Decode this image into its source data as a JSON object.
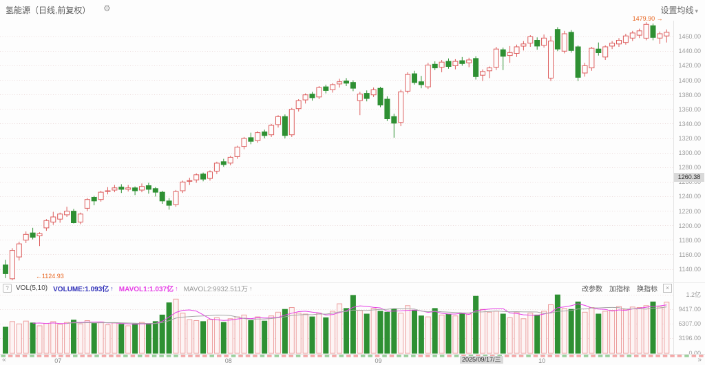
{
  "header": {
    "title": "氢能源（日线,前复权）",
    "gear_icon": "⚙",
    "ma_settings": "设置均线",
    "dropdown_arrow": "▾"
  },
  "indicator_bar": {
    "help_icon": "?",
    "name": "VOL(5,10)",
    "volume_label": "VOLUME:1.093亿",
    "volume_arrow": "↑",
    "mavol1_label": "MAVOL1:1.037亿",
    "mavol1_arrow": "↑",
    "mavol2_label": "MAVOL2:9932.511万",
    "mavol2_arrow": "↑",
    "links": [
      "改参数",
      "加指标",
      "换指标"
    ],
    "close_icon": "×"
  },
  "colors": {
    "up": "#dd5c5c",
    "up_fill": "#fefcfc",
    "down": "#2e9033",
    "vol_up_stroke": "#ec9c9c",
    "vol_up_fill": "#fdf4f4",
    "mavol1": "#e53ce5",
    "mavol2": "#a6a6a6",
    "annotation": "#e8641e",
    "volume_text": "#3030b8",
    "mavol2_text": "#999999",
    "mini_up": "#f3a8a8",
    "mini_down": "#9ccf9c",
    "badge_bg": "#d9d9d9"
  },
  "chart_data": {
    "type": "candlestick",
    "title": "氢能源（日线,前复权）",
    "grid": "dotted",
    "price_axis": {
      "range": [
        1122,
        1482
      ],
      "ticks": [
        1460,
        1440,
        1420,
        1400,
        1380,
        1360,
        1340,
        1320,
        1300,
        1280,
        1260,
        1240,
        1220,
        1200,
        1180,
        1160,
        1140
      ],
      "crosshair_label": "1260.38",
      "crosshair_value": 1260.38
    },
    "volume_axis": {
      "range": [
        0,
        12528
      ],
      "ticks": [
        {
          "label": "1.2亿",
          "value": 12528
        },
        {
          "label": "9417.00",
          "value": 9417
        },
        {
          "label": "6307.00",
          "value": 6307
        },
        {
          "label": "3196.00",
          "value": 3196
        },
        {
          "label": "0.00",
          "value": 0
        }
      ]
    },
    "x_axis": {
      "left_arrow": "«",
      "right_arrow": "»",
      "month_labels": [
        {
          "label": "07",
          "index": 8
        },
        {
          "label": "08",
          "index": 33
        },
        {
          "label": "09",
          "index": 55
        },
        {
          "label": "10",
          "index": 79
        }
      ],
      "crosshair": {
        "label": "2025/09/17/三",
        "index": 70
      }
    },
    "annotations": {
      "high": {
        "text": "1479.90 →",
        "value": 1479.9,
        "index": 94
      },
      "low": {
        "text": "←1124.93",
        "value": 1124.93,
        "index": 1
      }
    },
    "indicator": {
      "name": "VOL(5,10)",
      "volume": "1.093亿",
      "mavol1": "1.037亿",
      "mavol2": "9932.511万"
    },
    "candles": [
      [
        1146,
        1153,
        1128,
        1134,
        5600
      ],
      [
        1127,
        1169,
        1124.93,
        1166,
        6800
      ],
      [
        1157,
        1178,
        1152,
        1175,
        6300
      ],
      [
        1180,
        1192,
        1176,
        1188,
        6900
      ],
      [
        1190,
        1197,
        1181,
        1184,
        6500
      ],
      [
        1186,
        1191,
        1172,
        1189,
        5900
      ],
      [
        1197,
        1209,
        1193,
        1207,
        6400
      ],
      [
        1205,
        1219,
        1201,
        1212,
        6800
      ],
      [
        1209,
        1218,
        1204,
        1216,
        6200
      ],
      [
        1215,
        1226,
        1212,
        1220,
        6600
      ],
      [
        1220,
        1223,
        1203,
        1204,
        7100
      ],
      [
        1205,
        1218,
        1202,
        1216,
        6300
      ],
      [
        1224,
        1238,
        1220,
        1236,
        7000
      ],
      [
        1239,
        1241,
        1228,
        1234,
        6400
      ],
      [
        1236,
        1248,
        1233,
        1246,
        6700
      ],
      [
        1247,
        1253,
        1243,
        1248,
        6100
      ],
      [
        1249,
        1256,
        1246,
        1252,
        6500
      ],
      [
        1253,
        1257,
        1245,
        1250,
        6200
      ],
      [
        1250,
        1256,
        1247,
        1252,
        5900
      ],
      [
        1252,
        1254,
        1242,
        1248,
        6300
      ],
      [
        1249,
        1258,
        1246,
        1254,
        6600
      ],
      [
        1255,
        1259,
        1244,
        1250,
        6400
      ],
      [
        1251,
        1253,
        1240,
        1246,
        6800
      ],
      [
        1246,
        1248,
        1230,
        1234,
        8200
      ],
      [
        1234,
        1238,
        1222,
        1228,
        10800
      ],
      [
        1229,
        1249,
        1226,
        1247,
        11600
      ],
      [
        1248,
        1262,
        1245,
        1260,
        8600
      ],
      [
        1261,
        1266,
        1256,
        1262,
        7200
      ],
      [
        1263,
        1272,
        1259,
        1270,
        7000
      ],
      [
        1271,
        1273,
        1261,
        1264,
        6800
      ],
      [
        1265,
        1276,
        1262,
        1274,
        7200
      ],
      [
        1275,
        1288,
        1271,
        1286,
        7600
      ],
      [
        1288,
        1292,
        1281,
        1284,
        6600
      ],
      [
        1286,
        1296,
        1283,
        1294,
        7400
      ],
      [
        1295,
        1310,
        1292,
        1308,
        7800
      ],
      [
        1309,
        1322,
        1305,
        1320,
        8200
      ],
      [
        1321,
        1328,
        1312,
        1316,
        7000
      ],
      [
        1317,
        1330,
        1314,
        1328,
        7800
      ],
      [
        1329,
        1332,
        1320,
        1324,
        6900
      ],
      [
        1325,
        1340,
        1322,
        1338,
        8000
      ],
      [
        1339,
        1352,
        1335,
        1350,
        8800
      ],
      [
        1350,
        1353,
        1320,
        1324,
        9400
      ],
      [
        1325,
        1362,
        1322,
        1360,
        9800
      ],
      [
        1361,
        1374,
        1357,
        1372,
        8600
      ],
      [
        1373,
        1382,
        1368,
        1380,
        8400
      ],
      [
        1381,
        1384,
        1372,
        1376,
        7800
      ],
      [
        1377,
        1392,
        1374,
        1390,
        8600
      ],
      [
        1391,
        1394,
        1382,
        1386,
        7600
      ],
      [
        1387,
        1396,
        1383,
        1394,
        9000
      ],
      [
        1395,
        1402,
        1390,
        1398,
        10600
      ],
      [
        1399,
        1403,
        1392,
        1396,
        9600
      ],
      [
        1397,
        1400,
        1385,
        1389,
        12400
      ],
      [
        1372,
        1384,
        1352,
        1381,
        9200
      ],
      [
        1382,
        1386,
        1371,
        1375,
        8400
      ],
      [
        1380,
        1390,
        1377,
        1387,
        9600
      ],
      [
        1389,
        1391,
        1363,
        1366,
        9000
      ],
      [
        1374,
        1378,
        1344,
        1347,
        8800
      ],
      [
        1350,
        1354,
        1321,
        1341,
        9400
      ],
      [
        1342,
        1387,
        1337,
        1384,
        8600
      ],
      [
        1385,
        1411,
        1382,
        1408,
        10200
      ],
      [
        1409,
        1413,
        1394,
        1397,
        9200
      ],
      [
        1398,
        1406,
        1389,
        1394,
        8000
      ],
      [
        1391,
        1424,
        1388,
        1421,
        7800
      ],
      [
        1422,
        1426,
        1414,
        1417,
        9600
      ],
      [
        1418,
        1428,
        1411,
        1425,
        8200
      ],
      [
        1426,
        1430,
        1416,
        1419,
        8400
      ],
      [
        1420,
        1429,
        1415,
        1426,
        8000
      ],
      [
        1427,
        1432,
        1420,
        1423,
        8600
      ],
      [
        1424,
        1431,
        1418,
        1428,
        8400
      ],
      [
        1430,
        1433,
        1401,
        1405,
        12200
      ],
      [
        1407,
        1415,
        1399,
        1412,
        9400
      ],
      [
        1413,
        1419,
        1403,
        1417,
        8800
      ],
      [
        1418,
        1446,
        1414,
        1443,
        9000
      ],
      [
        1442,
        1445,
        1414,
        1433,
        8400
      ],
      [
        1434,
        1447,
        1424,
        1438,
        7600
      ],
      [
        1437,
        1449,
        1432,
        1446,
        8800
      ],
      [
        1447,
        1454,
        1441,
        1450,
        7400
      ],
      [
        1451,
        1462,
        1446,
        1460,
        8600
      ],
      [
        1455,
        1459,
        1442,
        1447,
        8200
      ],
      [
        1448,
        1463,
        1445,
        1458,
        9000
      ],
      [
        1403,
        1461,
        1399,
        1454,
        10400
      ],
      [
        1470,
        1473,
        1440,
        1443,
        12500
      ],
      [
        1440,
        1468,
        1437,
        1464,
        9600
      ],
      [
        1466,
        1469,
        1438,
        1441,
        9400
      ],
      [
        1446,
        1448,
        1399,
        1404,
        11000
      ],
      [
        1410,
        1424,
        1405,
        1420,
        8800
      ],
      [
        1417,
        1446,
        1413,
        1444,
        9800
      ],
      [
        1443,
        1452,
        1434,
        1438,
        8400
      ],
      [
        1432,
        1448,
        1428,
        1446,
        9000
      ],
      [
        1447,
        1454,
        1443,
        1451,
        9200
      ],
      [
        1450,
        1458,
        1446,
        1455,
        10000
      ],
      [
        1452,
        1464,
        1449,
        1461,
        9400
      ],
      [
        1458,
        1468,
        1454,
        1465,
        9900
      ],
      [
        1462,
        1471,
        1458,
        1468,
        9800
      ],
      [
        1458,
        1479.9,
        1455,
        1477,
        10200
      ],
      [
        1475,
        1478,
        1455,
        1459,
        11000
      ],
      [
        1458,
        1467,
        1450,
        1464,
        9900
      ],
      [
        1461,
        1470,
        1452,
        1466,
        10930
      ]
    ]
  }
}
